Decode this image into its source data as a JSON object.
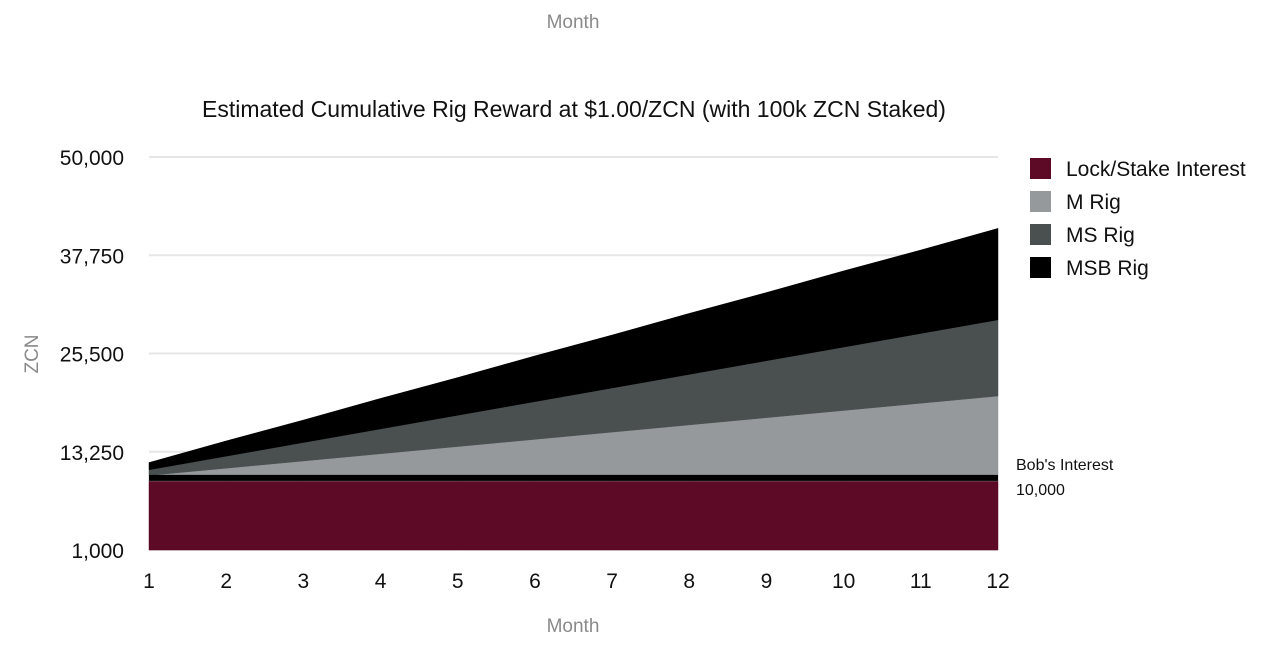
{
  "chart_data": {
    "type": "area",
    "stacked": true,
    "title": "Estimated Cumulative Rig Reward at $1.00/ZCN (with 100k ZCN Staked)",
    "top_label": "Month",
    "xlabel": "Month",
    "ylabel": "ZCN",
    "x": [
      1,
      2,
      3,
      4,
      5,
      6,
      7,
      8,
      9,
      10,
      11,
      12
    ],
    "y_ticks": [
      "1,000",
      "13,250",
      "25,500",
      "37,750",
      "50,000"
    ],
    "y_tick_values": [
      1000,
      13250,
      25500,
      37750,
      50000
    ],
    "ylim": [
      1000,
      50000
    ],
    "grid": true,
    "legend_position": "right",
    "series": [
      {
        "name": "Lock/Stake Interest",
        "color": "#5c0a25",
        "values": [
          9600,
          9600,
          9600,
          9600,
          9600,
          9600,
          9600,
          9600,
          9600,
          9600,
          9600,
          9600
        ]
      },
      {
        "name": "M Rig",
        "color": "#95999c",
        "values": [
          700,
          1600,
          2500,
          3400,
          4300,
          5200,
          6100,
          7000,
          7900,
          8800,
          9700,
          10600
        ]
      },
      {
        "name": "MS Rig",
        "color": "#4a4f50",
        "values": [
          700,
          1500,
          2300,
          3100,
          3900,
          4700,
          5500,
          6300,
          7100,
          7900,
          8700,
          9500
        ]
      },
      {
        "name": "MSB Rig",
        "color": "#000000",
        "values": [
          900,
          1900,
          2800,
          3800,
          4700,
          5700,
          6600,
          7600,
          8500,
          9500,
          10400,
          11400
        ]
      }
    ],
    "reference_line": {
      "label": "Bob's Interest",
      "value_label": "10,000",
      "value": 10000,
      "color": "#000000"
    }
  }
}
